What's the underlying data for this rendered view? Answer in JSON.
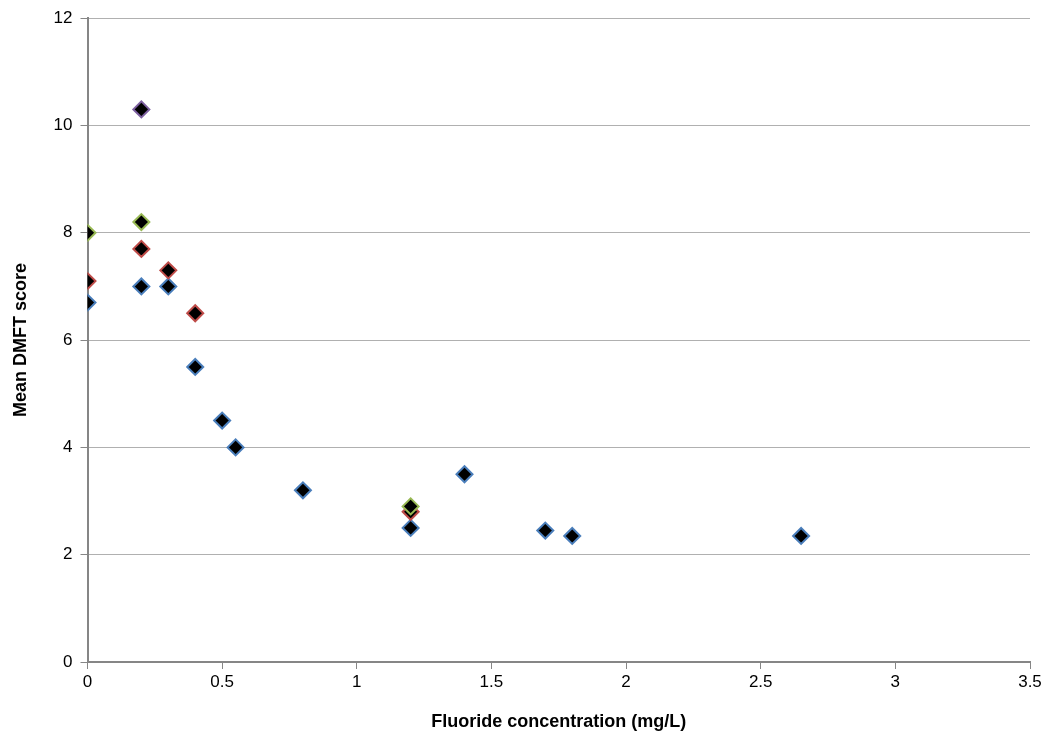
{
  "chart_data": {
    "type": "scatter",
    "xlabel": "Fluoride concentration (mg/L)",
    "ylabel": "Mean DMFT score",
    "xlim": [
      0,
      3.5
    ],
    "xticks": [
      0,
      0.5,
      1,
      1.5,
      2,
      2.5,
      3,
      3.5
    ],
    "ylim": [
      0,
      12
    ],
    "yticks": [
      0,
      2,
      4,
      6,
      8,
      10,
      12
    ],
    "grid": "y",
    "legend": false,
    "marker": "diamond",
    "series": [
      {
        "color": "#4a7ebb",
        "x": [
          0,
          0.2,
          0.3,
          0.4,
          0.5,
          0.55,
          0.8,
          1.2,
          1.4,
          1.7,
          1.8,
          2.65
        ],
        "values": [
          6.7,
          7.0,
          7.0,
          5.5,
          4.5,
          4.0,
          3.2,
          2.5,
          3.5,
          2.45,
          2.35,
          2.35
        ]
      },
      {
        "color": "#be4b48",
        "x": [
          0,
          0.2,
          0.3,
          0.4,
          1.2
        ],
        "values": [
          7.1,
          7.7,
          7.3,
          6.5,
          2.8
        ]
      },
      {
        "color": "#98b954",
        "x": [
          0,
          0.2,
          1.2
        ],
        "values": [
          8.0,
          8.2,
          2.9
        ]
      },
      {
        "color": "#7d60a0",
        "x": [
          0.2
        ],
        "values": [
          10.3
        ]
      }
    ]
  }
}
